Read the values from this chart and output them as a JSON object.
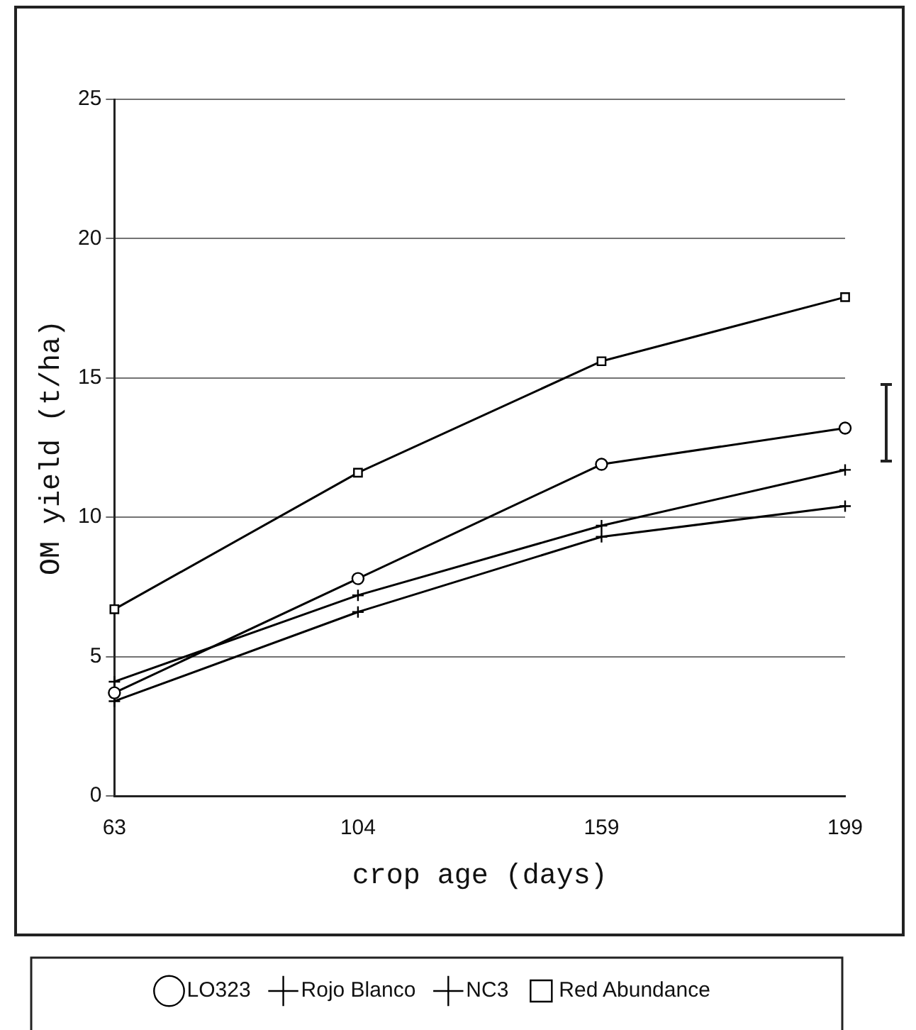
{
  "chart_data": {
    "type": "line",
    "xlabel": "crop age (days)",
    "ylabel": "OM yield (t/ha)",
    "categories": [
      "63",
      "104",
      "159",
      "199"
    ],
    "series": [
      {
        "name": "LO323",
        "color": "#000000",
        "marker": "circle",
        "values": [
          3.7,
          7.8,
          11.9,
          13.2
        ]
      },
      {
        "name": "Rojo Blanco",
        "color": "#000000",
        "marker": "cross",
        "values": [
          4.1,
          7.2,
          9.7,
          11.7
        ]
      },
      {
        "name": "NC3",
        "color": "#000000",
        "marker": "cross",
        "values": [
          3.4,
          6.6,
          9.3,
          10.4
        ]
      },
      {
        "name": "Red Abundance",
        "color": "#000000",
        "marker": "square",
        "values": [
          6.7,
          11.6,
          15.6,
          17.9
        ]
      }
    ],
    "ylim": [
      0,
      25
    ],
    "yticks": [
      0,
      5,
      10,
      15,
      20,
      25
    ],
    "grid": "y",
    "legend": "bottom",
    "line_style": "solid"
  }
}
